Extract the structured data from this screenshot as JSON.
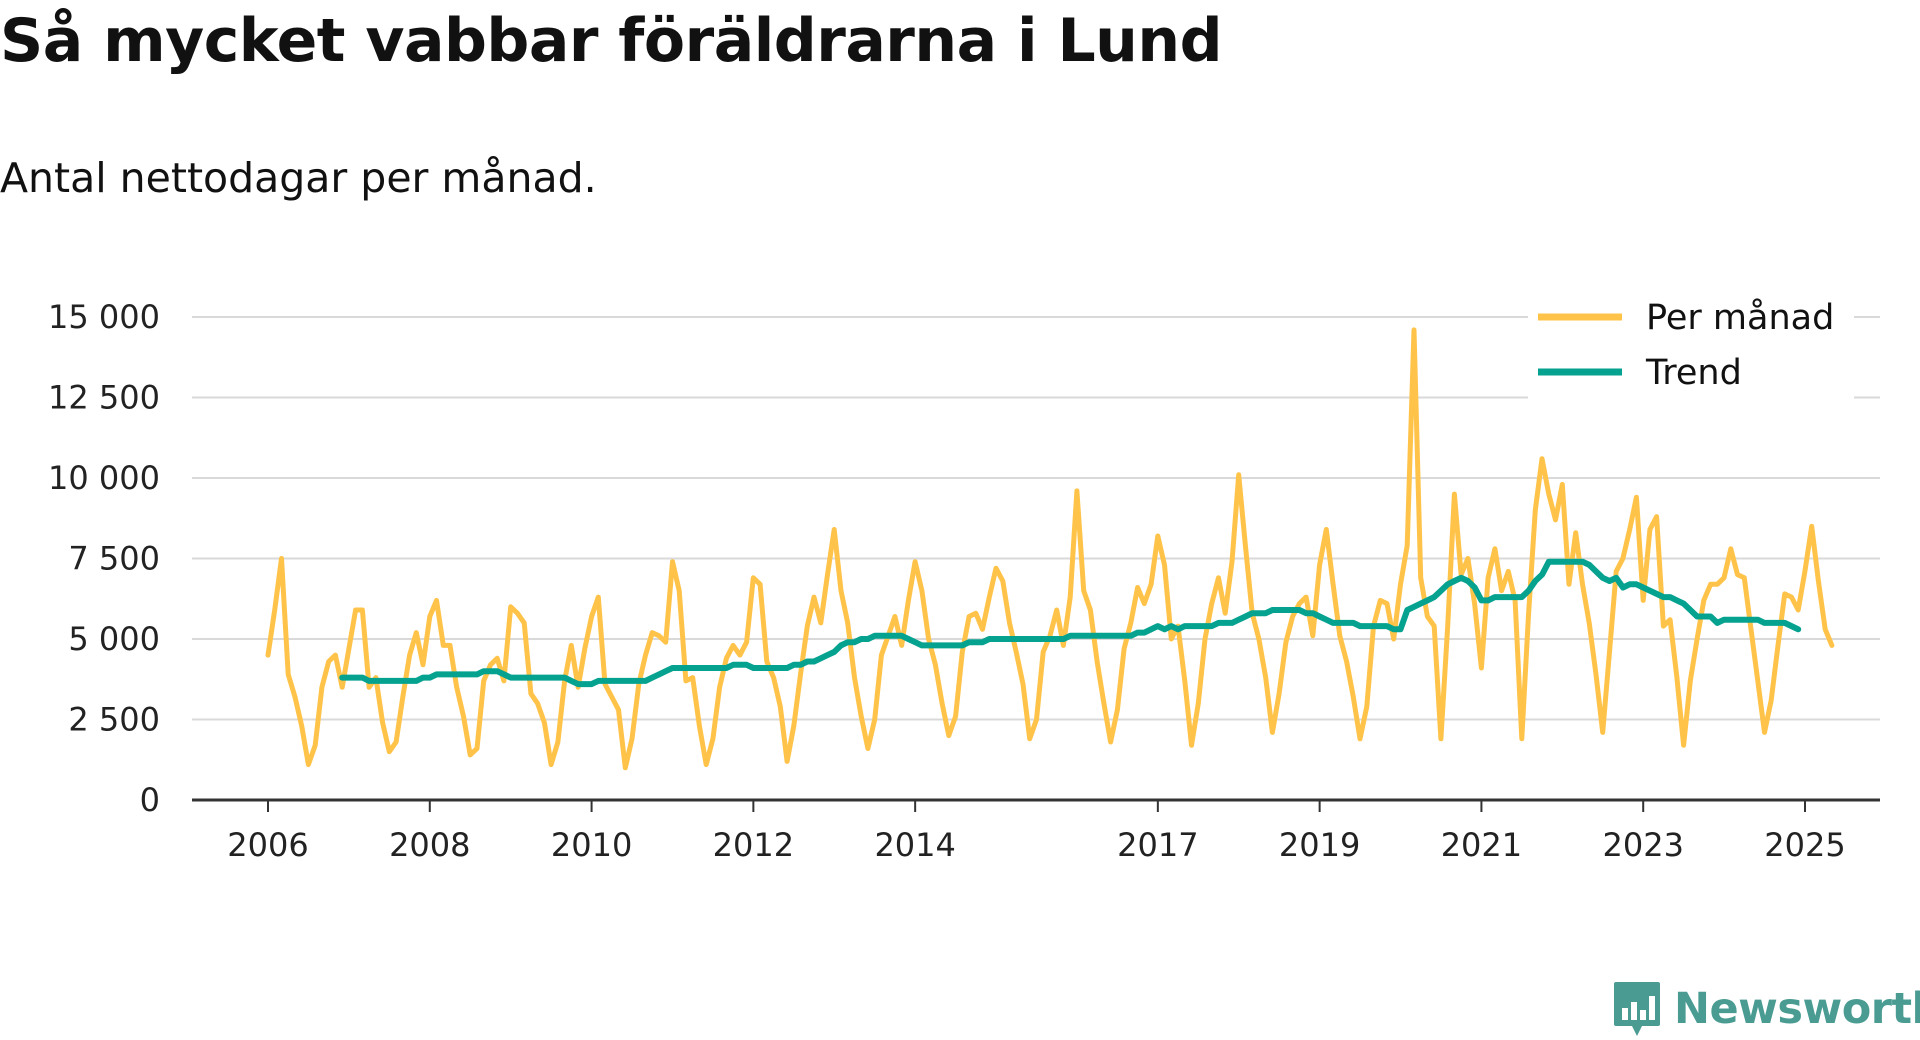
{
  "title": "Så mycket vabbar föräldrarna i Lund",
  "subtitle": "Antal nettodagar per månad.",
  "brand": {
    "name": "Newsworthy",
    "icon": "newsworthy-logo-icon",
    "color": "#4a9c93"
  },
  "colors": {
    "per_month": "#FFC34A",
    "trend": "#06A290",
    "grid": "#d9d9d9",
    "axis": "#333333"
  },
  "chart_data": {
    "type": "line",
    "title": "Så mycket vabbar föräldrarna i Lund",
    "subtitle": "Antal nettodagar per månad.",
    "xlabel": "",
    "ylabel": "",
    "xlim": [
      2006,
      2026.1
    ],
    "ylim": [
      0,
      15000
    ],
    "grid": true,
    "legend_position": "top-right",
    "x_ticks": [
      {
        "value": 2006,
        "label": "2006"
      },
      {
        "value": 2008,
        "label": "2008"
      },
      {
        "value": 2010,
        "label": "2010"
      },
      {
        "value": 2012,
        "label": "2012"
      },
      {
        "value": 2014,
        "label": "2014"
      },
      {
        "value": 2017,
        "label": "2017"
      },
      {
        "value": 2019,
        "label": "2019"
      },
      {
        "value": 2021,
        "label": "2021"
      },
      {
        "value": 2023,
        "label": "2023"
      },
      {
        "value": 2025,
        "label": "2025"
      }
    ],
    "y_ticks": [
      {
        "value": 0,
        "label": "0"
      },
      {
        "value": 2500,
        "label": "2 500"
      },
      {
        "value": 5000,
        "label": "5 000"
      },
      {
        "value": 7500,
        "label": "7 500"
      },
      {
        "value": 10000,
        "label": "10 000"
      },
      {
        "value": 12500,
        "label": "12 500"
      },
      {
        "value": 15000,
        "label": "15 000"
      }
    ],
    "series": [
      {
        "name": "Per månad",
        "color": "#FFC34A",
        "x_start": 2006.0,
        "step": 0.08333,
        "values": [
          4500,
          5900,
          7500,
          3900,
          3200,
          2300,
          1100,
          1700,
          3500,
          4300,
          4500,
          3500,
          4700,
          5900,
          5900,
          3500,
          3800,
          2400,
          1500,
          1800,
          3200,
          4500,
          5200,
          4200,
          5700,
          6200,
          4800,
          4800,
          3500,
          2600,
          1400,
          1600,
          3700,
          4200,
          4400,
          3700,
          6000,
          5800,
          5500,
          3300,
          3000,
          2400,
          1100,
          1800,
          3700,
          4800,
          3500,
          4700,
          5700,
          6300,
          3600,
          3200,
          2800,
          1000,
          1900,
          3600,
          4500,
          5200,
          5100,
          4900,
          7400,
          6500,
          3700,
          3800,
          2300,
          1100,
          1900,
          3500,
          4400,
          4800,
          4500,
          4900,
          6900,
          6700,
          4300,
          3800,
          2900,
          1200,
          2300,
          3900,
          5400,
          6300,
          5500,
          7000,
          8400,
          6500,
          5500,
          3800,
          2600,
          1600,
          2500,
          4500,
          5100,
          5700,
          4800,
          6200,
          7400,
          6500,
          5000,
          4200,
          3000,
          2000,
          2600,
          4600,
          5700,
          5800,
          5300,
          6300,
          7200,
          6800,
          5500,
          4600,
          3600,
          1900,
          2500,
          4600,
          5100,
          5900,
          4800,
          6300,
          9600,
          6500,
          5900,
          4300,
          3000,
          1800,
          2800,
          4700,
          5500,
          6600,
          6100,
          6700,
          8200,
          7300,
          5000,
          5400,
          3700,
          1700,
          3000,
          5000,
          6100,
          6900,
          5800,
          7400,
          10100,
          7900,
          5800,
          5000,
          3800,
          2100,
          3300,
          4900,
          5700,
          6100,
          6300,
          5100,
          7300,
          8400,
          6700,
          5100,
          4300,
          3200,
          1900,
          2900,
          5400,
          6200,
          6100,
          5000,
          6700,
          7900,
          14600,
          6900,
          5700,
          5400,
          1900,
          5400,
          9500,
          7000,
          7500,
          6100,
          4100,
          6900,
          7800,
          6500,
          7100,
          6200,
          1900,
          5800,
          9000,
          10600,
          9500,
          8700,
          9800,
          6700,
          8300,
          6700,
          5500,
          3900,
          2100,
          4600,
          7100,
          7500,
          8400,
          9400,
          6200,
          8400,
          8800,
          5400,
          5600,
          3800,
          1700,
          3700,
          5000,
          6200,
          6700,
          6700,
          6900,
          7800,
          7000,
          6900,
          5300,
          3700,
          2100,
          3100,
          4800,
          6400,
          6300,
          5900,
          7100,
          8500,
          6800,
          5300,
          4800
        ]
      },
      {
        "name": "Trend",
        "color": "#06A290",
        "x_start": 2006.917,
        "step": 0.08333,
        "values": [
          3800,
          3800,
          3800,
          3800,
          3700,
          3700,
          3700,
          3700,
          3700,
          3700,
          3700,
          3700,
          3800,
          3800,
          3900,
          3900,
          3900,
          3900,
          3900,
          3900,
          3900,
          4000,
          4000,
          4000,
          3900,
          3800,
          3800,
          3800,
          3800,
          3800,
          3800,
          3800,
          3800,
          3800,
          3700,
          3600,
          3600,
          3600,
          3700,
          3700,
          3700,
          3700,
          3700,
          3700,
          3700,
          3700,
          3800,
          3900,
          4000,
          4100,
          4100,
          4100,
          4100,
          4100,
          4100,
          4100,
          4100,
          4100,
          4200,
          4200,
          4200,
          4100,
          4100,
          4100,
          4100,
          4100,
          4100,
          4200,
          4200,
          4300,
          4300,
          4400,
          4500,
          4600,
          4800,
          4900,
          4900,
          5000,
          5000,
          5100,
          5100,
          5100,
          5100,
          5100,
          5000,
          4900,
          4800,
          4800,
          4800,
          4800,
          4800,
          4800,
          4800,
          4900,
          4900,
          4900,
          5000,
          5000,
          5000,
          5000,
          5000,
          5000,
          5000,
          5000,
          5000,
          5000,
          5000,
          5000,
          5100,
          5100,
          5100,
          5100,
          5100,
          5100,
          5100,
          5100,
          5100,
          5100,
          5200,
          5200,
          5300,
          5400,
          5300,
          5400,
          5300,
          5400,
          5400,
          5400,
          5400,
          5400,
          5500,
          5500,
          5500,
          5600,
          5700,
          5800,
          5800,
          5800,
          5900,
          5900,
          5900,
          5900,
          5900,
          5800,
          5800,
          5700,
          5600,
          5500,
          5500,
          5500,
          5500,
          5400,
          5400,
          5400,
          5400,
          5400,
          5300,
          5300,
          5900,
          6000,
          6100,
          6200,
          6300,
          6500,
          6700,
          6800,
          6900,
          6800,
          6600,
          6200,
          6200,
          6300,
          6300,
          6300,
          6300,
          6300,
          6500,
          6800,
          7000,
          7400,
          7400,
          7400,
          7400,
          7400,
          7400,
          7300,
          7100,
          6900,
          6800,
          6900,
          6600,
          6700,
          6700,
          6600,
          6500,
          6400,
          6300,
          6300,
          6200,
          6100,
          5900,
          5700,
          5700,
          5700,
          5500,
          5600,
          5600,
          5600,
          5600,
          5600,
          5600,
          5500,
          5500,
          5500,
          5500,
          5400,
          5300
        ]
      }
    ]
  }
}
